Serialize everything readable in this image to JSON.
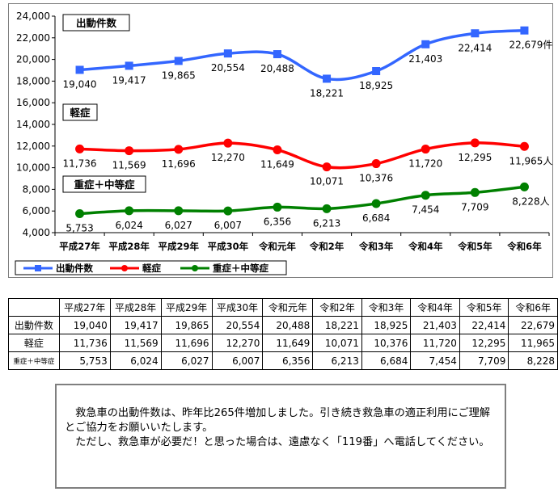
{
  "chart_data": {
    "type": "line",
    "categories": [
      "平成27年",
      "平成28年",
      "平成29年",
      "平成30年",
      "令和元年",
      "令和2年",
      "令和3年",
      "令和4年",
      "令和5年",
      "令和6年"
    ],
    "ylim": [
      4000,
      24000
    ],
    "yticks": [
      4000,
      6000,
      8000,
      10000,
      12000,
      14000,
      16000,
      18000,
      20000,
      22000,
      24000
    ],
    "ytick_labels": [
      "4,000",
      "6,000",
      "8,000",
      "10,000",
      "12,000",
      "14,000",
      "16,000",
      "18,000",
      "20,000",
      "22,000",
      "24,000"
    ],
    "grid": false,
    "legend_position": "bottom-left",
    "series": [
      {
        "name": "出動件数",
        "color": "#3366ff",
        "marker": "square",
        "values": [
          19040,
          19417,
          19865,
          20554,
          20488,
          18221,
          18925,
          21403,
          22414,
          22679
        ],
        "labels": [
          "19,040",
          "19,417",
          "19,865",
          "20,554",
          "20,488",
          "18,221",
          "18,925",
          "21,403",
          "22,414",
          "22,679件"
        ],
        "box_label": "出動件数"
      },
      {
        "name": "軽症",
        "color": "#ff0000",
        "marker": "circle",
        "values": [
          11736,
          11569,
          11696,
          12270,
          11649,
          10071,
          10376,
          11720,
          12295,
          11965
        ],
        "labels": [
          "11,736",
          "11,569",
          "11,696",
          "12,270",
          "11,649",
          "10,071",
          "10,376",
          "11,720",
          "12,295",
          "11,965人"
        ],
        "box_label": "軽症"
      },
      {
        "name": "重症＋中等症",
        "color": "#008000",
        "marker": "circle",
        "values": [
          5753,
          6024,
          6027,
          6007,
          6356,
          6213,
          6684,
          7454,
          7709,
          8228
        ],
        "labels": [
          "5,753",
          "6,024",
          "6,027",
          "6,007",
          "6,356",
          "6,213",
          "6,684",
          "7,454",
          "7,709",
          "8,228人"
        ],
        "box_label": "重症＋中等症"
      }
    ]
  },
  "table": {
    "headers": [
      "",
      "平成27年",
      "平成28年",
      "平成29年",
      "平成30年",
      "令和元年",
      "令和2年",
      "令和3年",
      "令和4年",
      "令和5年",
      "令和6年"
    ],
    "rows": [
      {
        "label": "出動件数",
        "cells": [
          "19,040",
          "19,417",
          "19,865",
          "20,554",
          "20,488",
          "18,221",
          "18,925",
          "21,403",
          "22,414",
          "22,679"
        ]
      },
      {
        "label": "軽症",
        "cells": [
          "11,736",
          "11,569",
          "11,696",
          "12,270",
          "11,649",
          "10,071",
          "10,376",
          "11,720",
          "12,295",
          "11,965"
        ]
      },
      {
        "label": "重症＋中等症",
        "cells": [
          "5,753",
          "6,024",
          "6,027",
          "6,007",
          "6,356",
          "6,213",
          "6,684",
          "7,454",
          "7,709",
          "8,228"
        ]
      }
    ]
  },
  "notice": {
    "paragraph1": "　救急車の出動件数は、昨年比265件増加しました。引き続き救急車の適正利用にご理解とご協力をお願いいたします。",
    "paragraph2": "　ただし、救急車が必要だ！と思った場合は、遠慮なく「119番」へ電話してください。"
  }
}
